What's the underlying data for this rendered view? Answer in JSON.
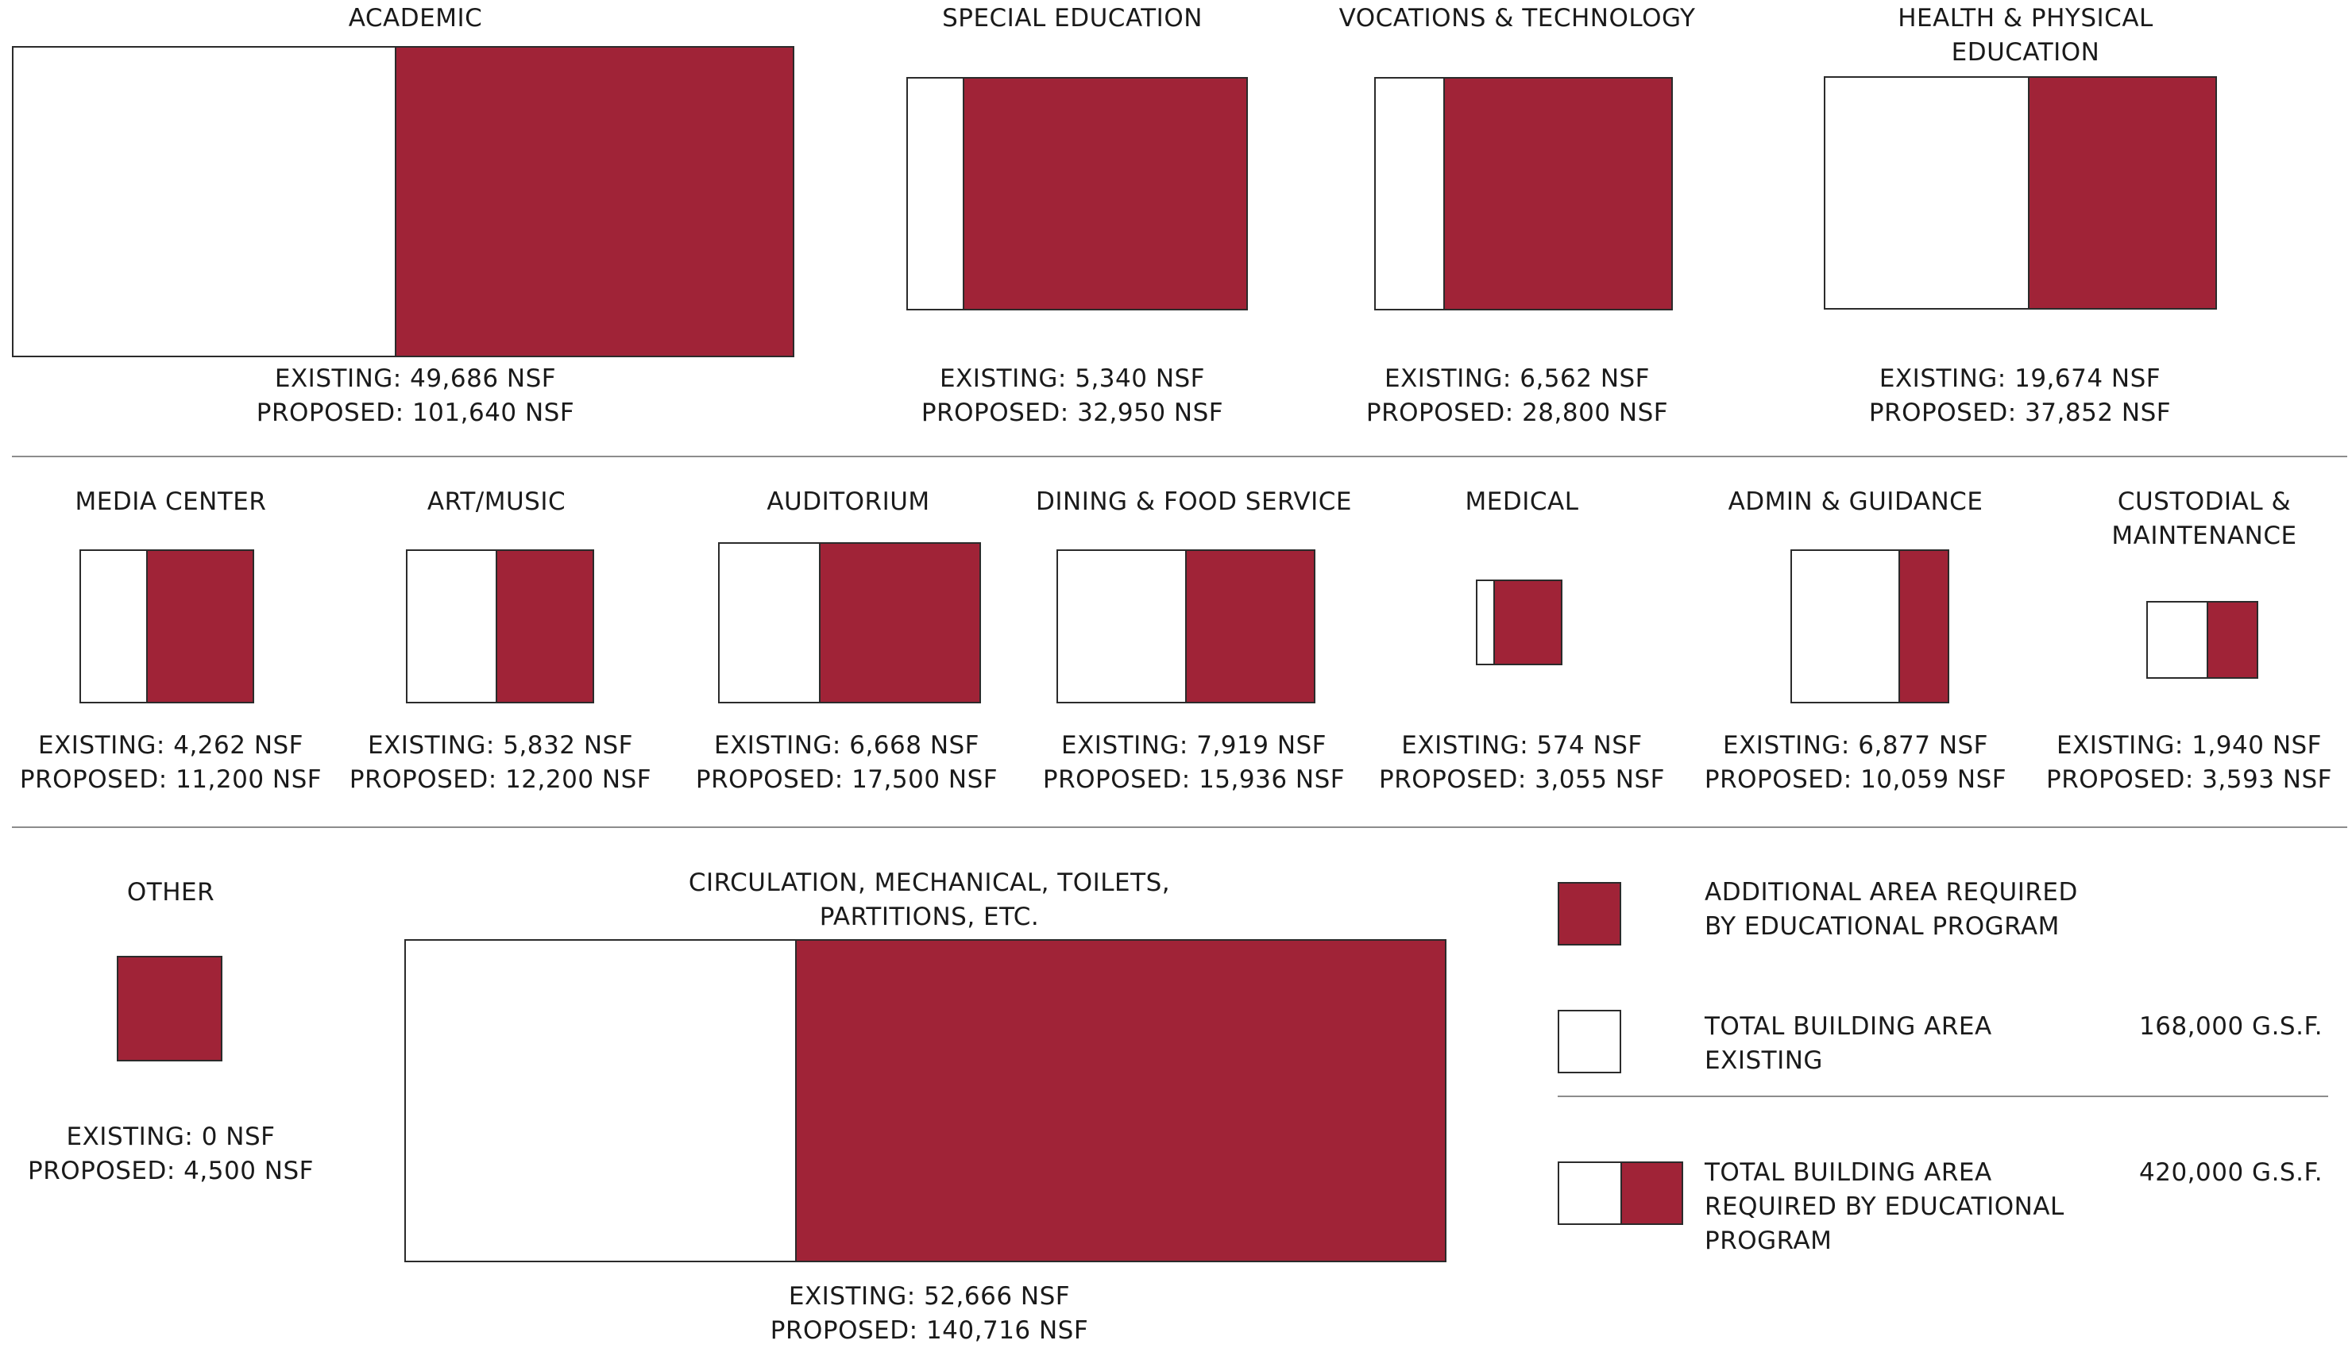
{
  "colors": {
    "additional": "#a02337",
    "existing": "#ffffff",
    "outline": "#2b2b2b",
    "rule": "#8c8c8c"
  },
  "rows": [
    {
      "items": [
        {
          "title": "ACADEMIC",
          "existing_label": "EXISTING: 49,686 NSF",
          "proposed_label": "PROPOSED: 101,640 NSF",
          "existing_nsf": 49686,
          "proposed_nsf": 101640
        },
        {
          "title": "SPECIAL EDUCATION",
          "existing_label": "EXISTING: 5,340 NSF",
          "proposed_label": "PROPOSED: 32,950 NSF",
          "existing_nsf": 5340,
          "proposed_nsf": 32950
        },
        {
          "title": "VOCATIONS & TECHNOLOGY",
          "existing_label": "EXISTING: 6,562 NSF",
          "proposed_label": "PROPOSED: 28,800 NSF",
          "existing_nsf": 6562,
          "proposed_nsf": 28800
        },
        {
          "title_line1": "HEALTH & PHYSICAL",
          "title_line2": "EDUCATION",
          "existing_label": "EXISTING: 19,674 NSF",
          "proposed_label": "PROPOSED: 37,852 NSF",
          "existing_nsf": 19674,
          "proposed_nsf": 37852
        }
      ]
    },
    {
      "items": [
        {
          "title": "MEDIA CENTER",
          "existing_label": "EXISTING: 4,262 NSF",
          "proposed_label": "PROPOSED: 11,200 NSF",
          "existing_nsf": 4262,
          "proposed_nsf": 11200
        },
        {
          "title": "ART/MUSIC",
          "existing_label": "EXISTING: 5,832 NSF",
          "proposed_label": "PROPOSED: 12,200 NSF",
          "existing_nsf": 5832,
          "proposed_nsf": 12200
        },
        {
          "title": "AUDITORIUM",
          "existing_label": "EXISTING: 6,668 NSF",
          "proposed_label": "PROPOSED: 17,500 NSF",
          "existing_nsf": 6668,
          "proposed_nsf": 17500
        },
        {
          "title": "DINING & FOOD SERVICE",
          "existing_label": "EXISTING: 7,919 NSF",
          "proposed_label": "PROPOSED: 15,936 NSF",
          "existing_nsf": 7919,
          "proposed_nsf": 15936
        },
        {
          "title": "MEDICAL",
          "existing_label": "EXISTING:  574 NSF",
          "proposed_label": "PROPOSED: 3,055 NSF",
          "existing_nsf": 574,
          "proposed_nsf": 3055
        },
        {
          "title": "ADMIN & GUIDANCE",
          "existing_label": "EXISTING: 6,877 NSF",
          "proposed_label": "PROPOSED: 10,059 NSF",
          "existing_nsf": 6877,
          "proposed_nsf": 10059
        },
        {
          "title_line1": "CUSTODIAL &",
          "title_line2": "MAINTENANCE",
          "existing_label": "EXISTING: 1,940 NSF",
          "proposed_label": "PROPOSED: 3,593 NSF",
          "existing_nsf": 1940,
          "proposed_nsf": 3593
        }
      ]
    },
    {
      "items": [
        {
          "title": "OTHER",
          "existing_label": "EXISTING: 0 NSF",
          "proposed_label": "PROPOSED: 4,500 NSF",
          "existing_nsf": 0,
          "proposed_nsf": 4500
        },
        {
          "title_line1": "CIRCULATION, MECHANICAL, TOILETS,",
          "title_line2": "PARTITIONS, ETC.",
          "existing_label": "EXISTING: 52,666 NSF",
          "proposed_label": "PROPOSED: 140,716 NSF",
          "existing_nsf": 52666,
          "proposed_nsf": 140716
        }
      ]
    }
  ],
  "legend": {
    "additional_line1": "ADDITIONAL AREA REQUIRED",
    "additional_line2": "BY EDUCATIONAL PROGRAM",
    "existing_line1": "TOTAL BUILDING AREA",
    "existing_line2": "EXISTING",
    "existing_value": "168,000 G.S.F.",
    "required_line1": "TOTAL BUILDING AREA",
    "required_line2": "REQUIRED BY EDUCATIONAL",
    "required_line3": "PROGRAM",
    "required_value": "420,000 G.S.F."
  }
}
